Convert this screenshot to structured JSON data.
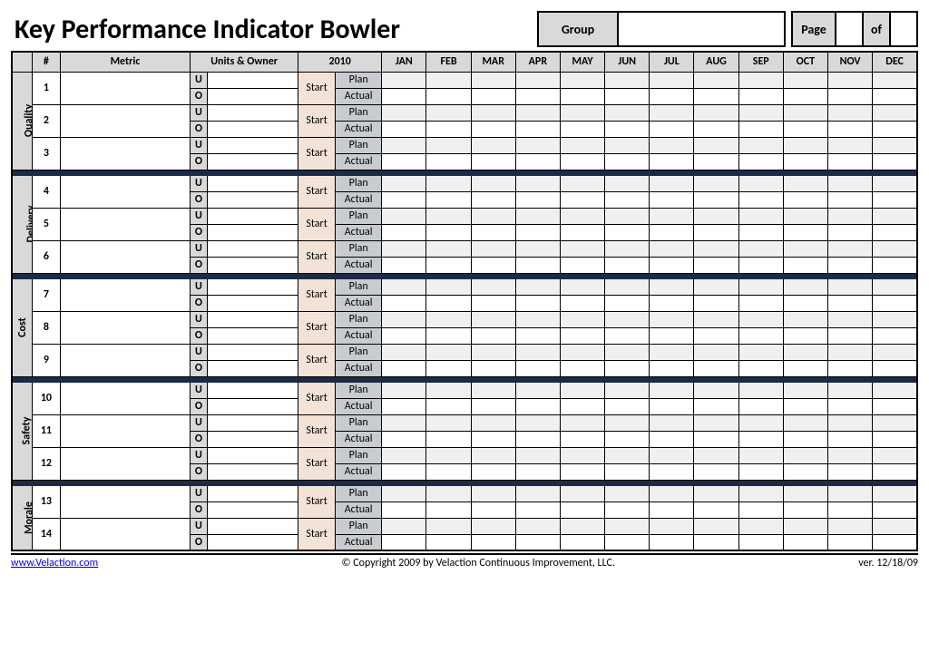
{
  "title": "Key Performance Indicator Bowler",
  "header": {
    "group_label": "Group",
    "group_value": "",
    "page_label": "Page",
    "page_value": "",
    "of_label": "of",
    "of_value": ""
  },
  "columns": {
    "hash": "#",
    "metric": "Metric",
    "units_owner": "Units & Owner",
    "year": "2010",
    "months": [
      "JAN",
      "FEB",
      "MAR",
      "APR",
      "MAY",
      "JUN",
      "JUL",
      "AUG",
      "SEP",
      "OCT",
      "NOV",
      "DEC"
    ]
  },
  "row_labels": {
    "u": "U",
    "o": "O",
    "start": "Start",
    "plan": "Plan",
    "actual": "Actual"
  },
  "categories": [
    {
      "name": "Quality",
      "rows": [
        1,
        2,
        3
      ]
    },
    {
      "name": "Delivery",
      "rows": [
        4,
        5,
        6
      ]
    },
    {
      "name": "Cost",
      "rows": [
        7,
        8,
        9
      ]
    },
    {
      "name": "Safety",
      "rows": [
        10,
        11,
        12
      ]
    },
    {
      "name": "Morale",
      "rows": [
        13,
        14
      ]
    }
  ],
  "footer": {
    "link_text": "www.Velaction.com",
    "link_href": "#",
    "copyright": "© Copyright 2009 by Velaction Continuous Improvement, LLC.",
    "version": "ver. 12/18/09"
  },
  "colors": {
    "header_bg": "#d9d9d9",
    "start_bg": "#f2e3d6",
    "planactual_bg": "#c8ccd0",
    "sep_bg": "#1b2a46",
    "plan_cell_bg": "#f0f0f0",
    "actual_cell_bg": "#ffffff",
    "border": "#000000"
  }
}
